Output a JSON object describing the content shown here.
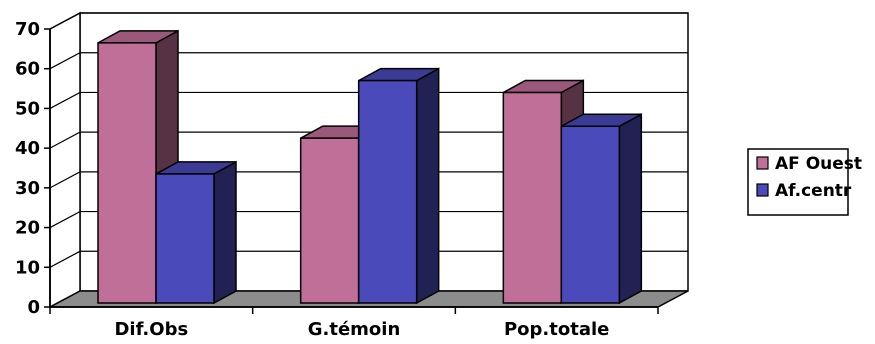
{
  "chart_data": {
    "type": "bar",
    "categories": [
      "Dif.Obs",
      "G.témoin",
      "Pop.totale"
    ],
    "series": [
      {
        "name": "AF Ouest",
        "values": [
          65.5,
          41.5,
          53
        ]
      },
      {
        "name": "Af.centr",
        "values": [
          32.5,
          56,
          44.5
        ]
      }
    ],
    "ylim": [
      0,
      70
    ],
    "yticks": [
      "0",
      "10",
      "20",
      "30",
      "40",
      "50",
      "60",
      "70"
    ],
    "grid": true,
    "legend_position": "right",
    "three_d": true
  },
  "colors": {
    "series": [
      "#c06f98",
      "#4a4aba"
    ],
    "floor": "#8c8c8c",
    "grid": "#000000"
  }
}
